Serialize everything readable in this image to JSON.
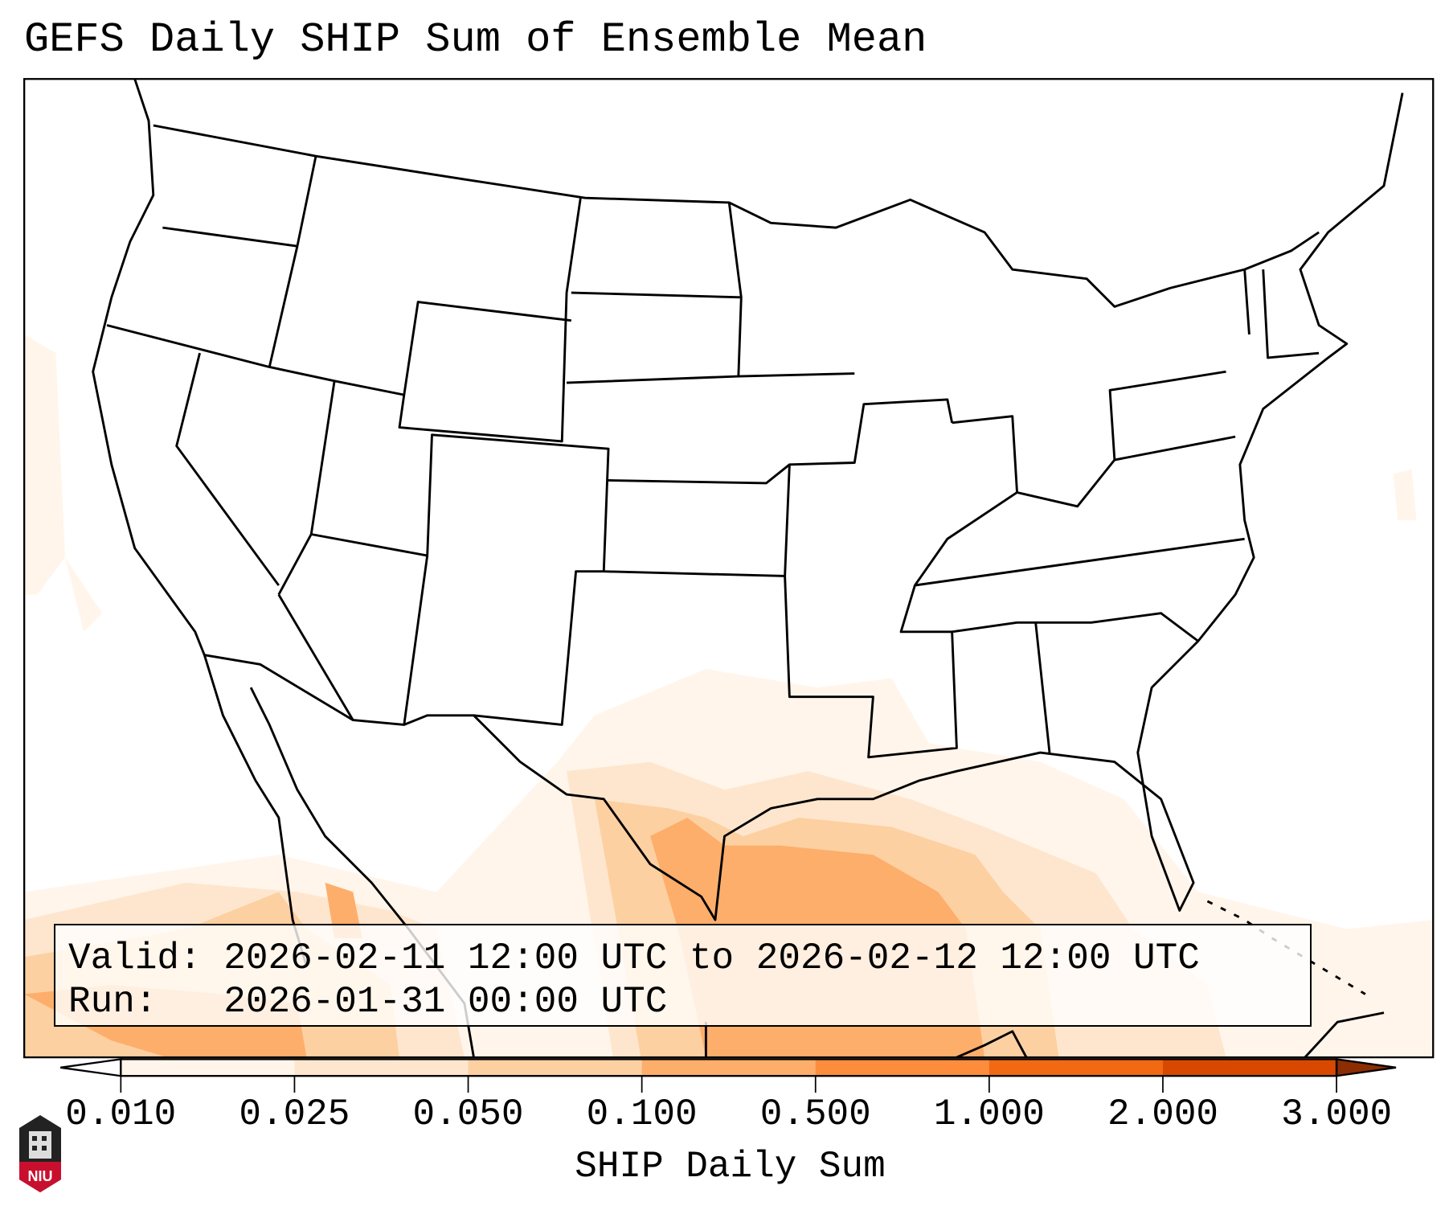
{
  "title": "GEFS Daily SHIP Sum of Ensemble Mean",
  "legend": {
    "valid_label": "Valid:",
    "valid_value": "2026-02-11 12:00 UTC to 2026-02-12 12:00 UTC",
    "run_label": "Run:",
    "run_value": "2026-01-31 00:00 UTC"
  },
  "colorbar": {
    "label": "SHIP Daily Sum",
    "ticks": [
      "0.010",
      "0.025",
      "0.050",
      "0.100",
      "0.500",
      "1.000",
      "2.000",
      "3.000"
    ],
    "colors": [
      "#fff5eb",
      "#fee6ce",
      "#fdd0a2",
      "#fdae6b",
      "#fd8d3c",
      "#f16913",
      "#d94801",
      "#8c2d04"
    ],
    "under_color": "#ffffff"
  },
  "logo": {
    "text": "NIU"
  }
}
